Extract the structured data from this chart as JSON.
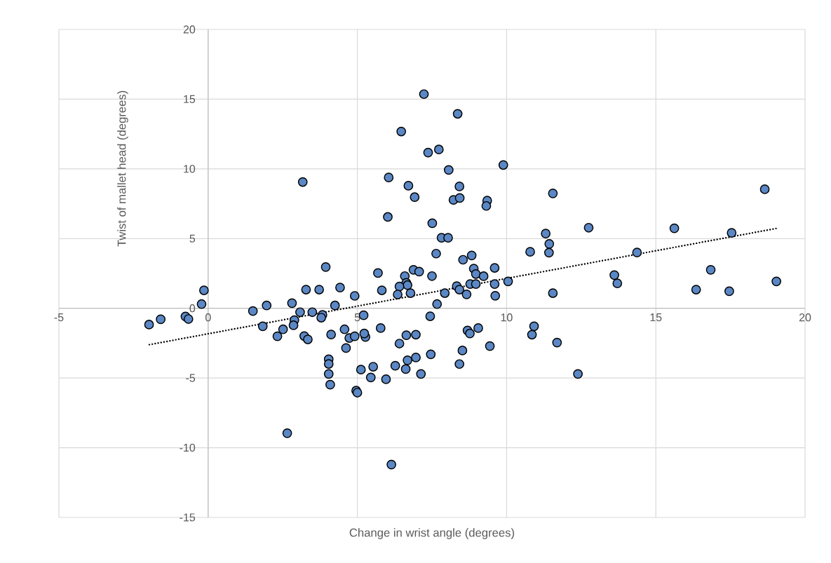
{
  "chart_data": {
    "type": "scatter",
    "xlabel": "Change in wrist angle (degrees)",
    "ylabel": "Twist of mallet head (degrees)",
    "xlim": [
      -5,
      20
    ],
    "ylim": [
      -15,
      20
    ],
    "xticks": [
      -5,
      0,
      5,
      10,
      15,
      20
    ],
    "yticks": [
      -15,
      -10,
      -5,
      0,
      5,
      10,
      15,
      20
    ],
    "grid": true,
    "series": [
      {
        "color": "#5b87c4",
        "marker": "circle",
        "x": [
          -1.98,
          -1.59,
          -0.76,
          -0.66,
          -0.22,
          -0.14,
          1.5,
          1.96,
          1.83,
          2.81,
          3.08,
          2.89,
          2.86,
          2.51,
          2.32,
          3.49,
          3.83,
          3.79,
          4.25,
          3.22,
          3.34,
          4.12,
          4.04,
          4.04,
          4.04,
          4.09,
          4.57,
          4.73,
          4.62,
          4.91,
          5.12,
          4.96,
          5.0,
          2.65,
          5.27,
          5.23,
          5.21,
          3.17,
          3.94,
          3.28,
          3.72,
          4.42,
          4.91,
          7.23,
          8.36,
          6.47,
          7.37,
          7.73,
          8.06,
          9.89,
          6.05,
          6.71,
          8.42,
          6.92,
          8.22,
          8.43,
          9.35,
          9.32,
          11.55,
          6.02,
          7.51,
          7.82,
          8.04,
          12.75,
          11.31,
          11.43,
          11.42,
          10.79,
          7.64,
          8.54,
          8.83,
          5.69,
          6.88,
          7.07,
          6.59,
          7.5,
          8.9,
          8.97,
          9.23,
          9.6,
          6.64,
          6.68,
          6.41,
          5.82,
          6.35,
          6.78,
          7.93,
          8.33,
          8.42,
          8.66,
          8.78,
          8.97,
          9.6,
          9.62,
          10.05,
          11.55,
          7.67,
          7.44,
          5.78,
          6.64,
          6.96,
          6.41,
          8.69,
          8.77,
          9.05,
          9.44,
          8.52,
          7.46,
          8.42,
          6.96,
          6.68,
          6.27,
          6.62,
          7.13,
          5.53,
          5.45,
          5.96,
          6.14,
          10.92,
          10.85,
          11.69,
          12.39,
          15.62,
          17.54,
          18.65,
          14.37,
          13.61,
          13.71,
          16.84,
          16.35,
          17.46,
          19.04
        ],
        "values": [
          -1.17,
          -0.79,
          -0.59,
          -0.77,
          0.3,
          1.29,
          -0.2,
          0.2,
          -1.29,
          0.37,
          -0.28,
          -0.85,
          -1.22,
          -1.51,
          -2.01,
          -0.28,
          -0.47,
          -0.67,
          0.2,
          -1.99,
          -2.23,
          -1.88,
          -3.65,
          -3.99,
          -4.71,
          -5.48,
          -1.51,
          -2.13,
          -2.85,
          -2.01,
          -4.4,
          -5.91,
          -6.05,
          -8.96,
          -2.06,
          -1.81,
          -0.5,
          9.06,
          2.96,
          1.34,
          1.34,
          1.49,
          0.89,
          15.36,
          13.95,
          12.68,
          11.17,
          11.39,
          9.92,
          10.28,
          9.38,
          8.79,
          8.74,
          7.97,
          7.77,
          7.91,
          7.72,
          7.34,
          8.24,
          6.55,
          6.1,
          5.06,
          5.06,
          5.78,
          5.36,
          4.62,
          3.99,
          4.05,
          3.92,
          3.48,
          3.79,
          2.53,
          2.76,
          2.63,
          2.31,
          2.31,
          2.85,
          2.46,
          2.3,
          2.9,
          1.83,
          1.66,
          1.56,
          1.29,
          0.99,
          1.09,
          1.09,
          1.59,
          1.34,
          1.0,
          1.74,
          1.74,
          1.74,
          0.9,
          1.93,
          1.09,
          0.3,
          -0.57,
          -1.42,
          -1.93,
          -1.89,
          -2.53,
          -1.59,
          -1.81,
          -1.42,
          -2.71,
          -3.03,
          -3.3,
          -4.0,
          -3.53,
          -3.73,
          -4.12,
          -4.36,
          -4.71,
          -4.19,
          -4.96,
          -5.09,
          -11.21,
          -1.29,
          -1.89,
          -2.46,
          -4.71,
          5.74,
          5.41,
          8.54,
          4.0,
          2.38,
          1.79,
          2.76,
          1.34,
          1.22,
          1.93
        ]
      },
      {
        "type": "line",
        "color": "#000000",
        "marker": "none",
        "line_style": "dotted",
        "x": [
          -1.97,
          19.04
        ],
        "values": [
          -2.61,
          5.73
        ]
      }
    ]
  }
}
